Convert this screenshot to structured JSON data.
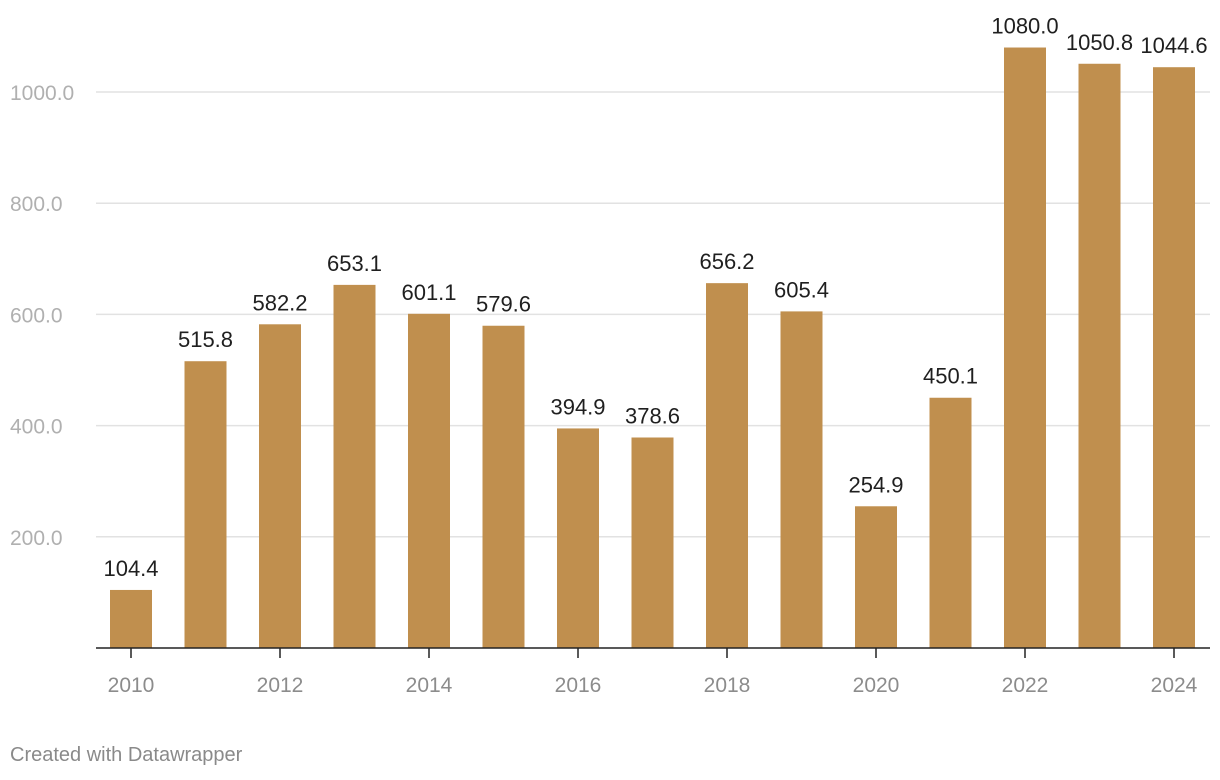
{
  "chart_data": {
    "type": "bar",
    "categories": [
      "2010",
      "2011",
      "2012",
      "2013",
      "2014",
      "2015",
      "2016",
      "2017",
      "2018",
      "2019",
      "2020",
      "2021",
      "2022",
      "2023",
      "2024"
    ],
    "values": [
      104.4,
      515.8,
      582.2,
      653.1,
      601.1,
      579.6,
      394.9,
      378.6,
      656.2,
      605.4,
      254.9,
      450.1,
      1080.0,
      1050.8,
      1044.6
    ],
    "value_labels": [
      "104.4",
      "515.8",
      "582.2",
      "653.1",
      "601.1",
      "579.6",
      "394.9",
      "378.6",
      "656.2",
      "605.4",
      "254.9",
      "450.1",
      "1080.0",
      "1050.8",
      "1044.6"
    ],
    "x_tick_labels": [
      "2010",
      "2012",
      "2014",
      "2016",
      "2018",
      "2020",
      "2022",
      "2024"
    ],
    "y_ticks": [
      200,
      400,
      600,
      800,
      1000
    ],
    "y_tick_labels": [
      "200.0",
      "400.0",
      "600.0",
      "800.0",
      "1000.0"
    ],
    "ylim": [
      0,
      1080
    ],
    "grid": true,
    "bar_color": "#c08f4e",
    "title": "",
    "xlabel": "",
    "ylabel": ""
  },
  "footer": {
    "credit": "Created with Datawrapper"
  }
}
